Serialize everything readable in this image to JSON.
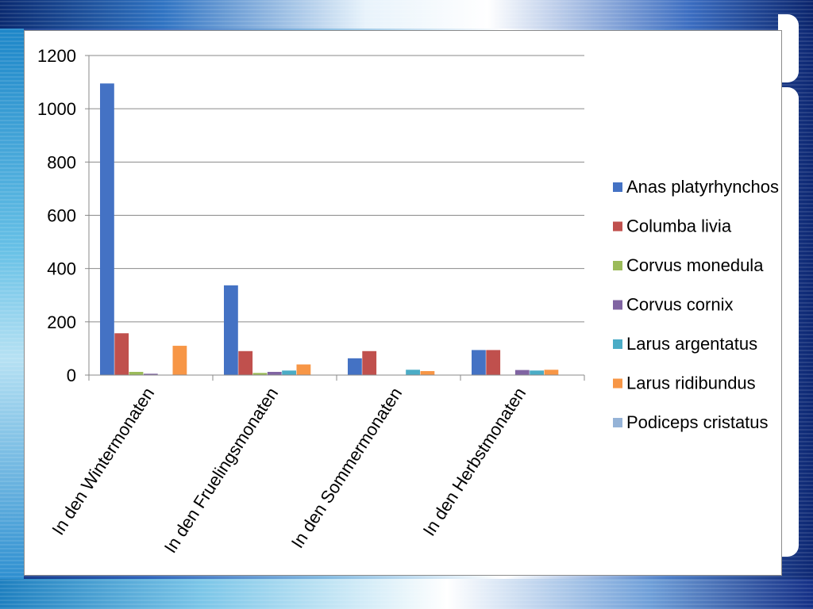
{
  "chart_data": {
    "type": "bar",
    "categories": [
      "In den Wintermonaten",
      "In den Fruelingsmonaten",
      "In den Sommermonaten",
      "In den Herbstmonaten"
    ],
    "series": [
      {
        "name": "Anas platyrhynchos",
        "color": "#4472C4",
        "values": [
          1095,
          337,
          63,
          94
        ]
      },
      {
        "name": "Columba livia",
        "color": "#C0504D",
        "values": [
          157,
          90,
          90,
          94
        ]
      },
      {
        "name": "Corvus monedula",
        "color": "#9BBB59",
        "values": [
          12,
          8,
          0,
          0
        ]
      },
      {
        "name": "Corvus cornix",
        "color": "#8064A2",
        "values": [
          5,
          12,
          0,
          19
        ]
      },
      {
        "name": "Larus argentatus",
        "color": "#4BACC6",
        "values": [
          0,
          17,
          20,
          17
        ]
      },
      {
        "name": "Larus ridibundus",
        "color": "#F79646",
        "values": [
          110,
          40,
          15,
          20
        ]
      },
      {
        "name": "Podiceps cristatus",
        "color": "#95B3D7",
        "values": [
          0,
          0,
          0,
          0
        ]
      }
    ],
    "ylim": [
      0,
      1200
    ],
    "yticks": [
      "0",
      "200",
      "400",
      "600",
      "800",
      "1000",
      "1200"
    ],
    "grid": true,
    "legend_position": "right"
  }
}
